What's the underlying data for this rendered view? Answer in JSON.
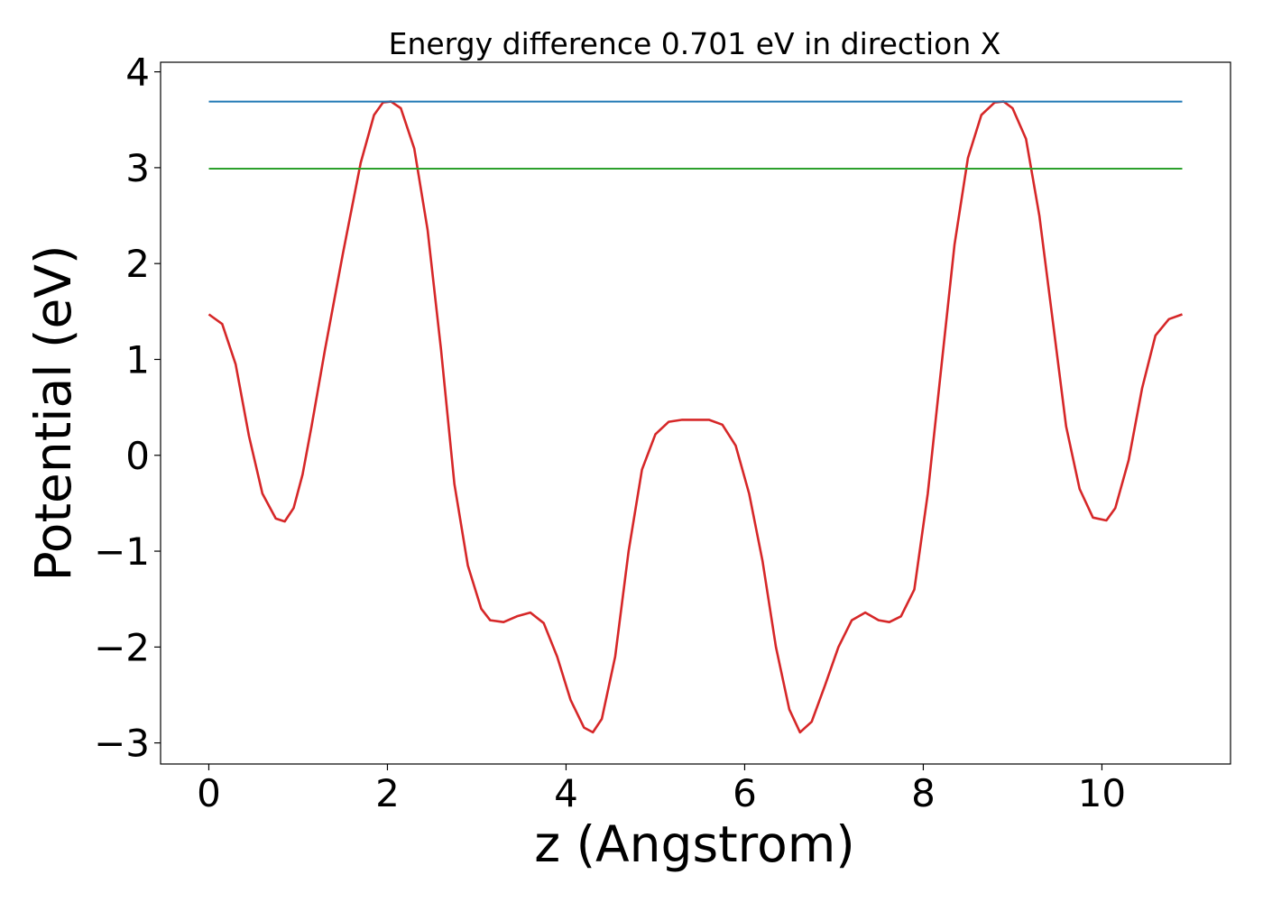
{
  "chart_data": {
    "type": "line",
    "title": "Energy difference 0.701 eV in direction X",
    "xlabel": "z (Angstrom)",
    "ylabel": "Potential (eV)",
    "xlim": [
      -0.54,
      11.44
    ],
    "ylim": [
      -3.22,
      4.1
    ],
    "xticks": [
      0,
      2,
      4,
      6,
      8,
      10
    ],
    "xtick_labels": [
      "0",
      "2",
      "4",
      "6",
      "8",
      "10"
    ],
    "yticks": [
      -3,
      -2,
      -1,
      0,
      1,
      2,
      3,
      4
    ],
    "ytick_labels": [
      "−3",
      "−2",
      "−1",
      "0",
      "1",
      "2",
      "3",
      "4"
    ],
    "grid": false,
    "series": [
      {
        "color": "#d62728",
        "x": [
          0,
          0.15,
          0.3,
          0.45,
          0.6,
          0.75,
          0.85,
          0.95,
          1.05,
          1.15,
          1.3,
          1.5,
          1.7,
          1.85,
          1.95,
          2.04,
          2.15,
          2.3,
          2.45,
          2.6,
          2.75,
          2.9,
          3.05,
          3.15,
          3.3,
          3.45,
          3.6,
          3.75,
          3.9,
          4.05,
          4.2,
          4.3,
          4.4,
          4.55,
          4.7,
          4.85,
          5.0,
          5.15,
          5.3,
          5.45,
          5.6,
          5.75,
          5.9,
          6.05,
          6.2,
          6.35,
          6.5,
          6.62,
          6.75,
          6.9,
          7.05,
          7.2,
          7.35,
          7.5,
          7.62,
          7.75,
          7.9,
          8.05,
          8.2,
          8.35,
          8.5,
          8.65,
          8.8,
          8.9,
          9.0,
          9.15,
          9.3,
          9.45,
          9.6,
          9.75,
          9.9,
          10.05,
          10.15,
          10.3,
          10.45,
          10.6,
          10.75,
          10.9
        ],
        "y": [
          1.47,
          1.37,
          0.95,
          0.2,
          -0.4,
          -0.66,
          -0.69,
          -0.55,
          -0.2,
          0.3,
          1.1,
          2.1,
          3.05,
          3.55,
          3.68,
          3.69,
          3.62,
          3.2,
          2.35,
          1.1,
          -0.3,
          -1.15,
          -1.6,
          -1.72,
          -1.74,
          -1.68,
          -1.64,
          -1.75,
          -2.1,
          -2.55,
          -2.84,
          -2.89,
          -2.75,
          -2.1,
          -1.0,
          -0.15,
          0.22,
          0.35,
          0.37,
          0.37,
          0.37,
          0.32,
          0.1,
          -0.4,
          -1.1,
          -2.0,
          -2.65,
          -2.89,
          -2.78,
          -2.4,
          -2.0,
          -1.72,
          -1.64,
          -1.72,
          -1.74,
          -1.68,
          -1.4,
          -0.4,
          0.9,
          2.2,
          3.1,
          3.55,
          3.68,
          3.69,
          3.62,
          3.3,
          2.5,
          1.4,
          0.3,
          -0.35,
          -0.65,
          -0.68,
          -0.55,
          -0.05,
          0.7,
          1.25,
          1.42,
          1.47
        ]
      },
      {
        "color": "#1f77b4",
        "x": [
          0,
          10.9
        ],
        "y": [
          3.69,
          3.69
        ]
      },
      {
        "color": "#2ca02c",
        "x": [
          0,
          10.9
        ],
        "y": [
          2.99,
          2.99
        ]
      }
    ]
  }
}
